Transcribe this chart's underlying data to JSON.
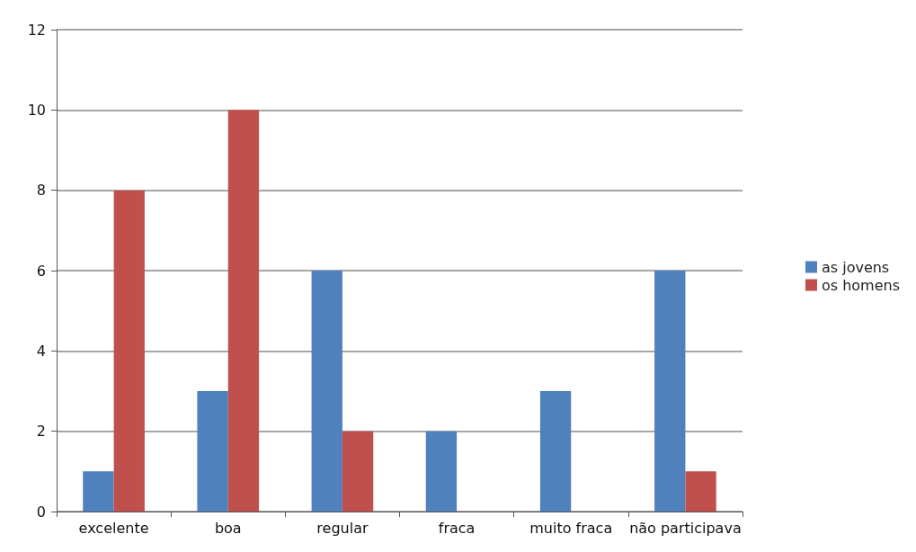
{
  "chart_data": {
    "type": "bar",
    "categories": [
      "excelente",
      "boa",
      "regular",
      "fraca",
      "muito fraca",
      "não participava"
    ],
    "series": [
      {
        "name": "as jovens",
        "color": "#4f81bd",
        "values": [
          1,
          3,
          6,
          2,
          3,
          6
        ]
      },
      {
        "name": "os homens",
        "color": "#c0504d",
        "values": [
          8,
          10,
          2,
          0,
          0,
          1
        ]
      }
    ],
    "ylim": [
      0,
      12
    ],
    "yticks": [
      0,
      2,
      4,
      6,
      8,
      10,
      12
    ],
    "grid": "y",
    "legend": "right"
  }
}
